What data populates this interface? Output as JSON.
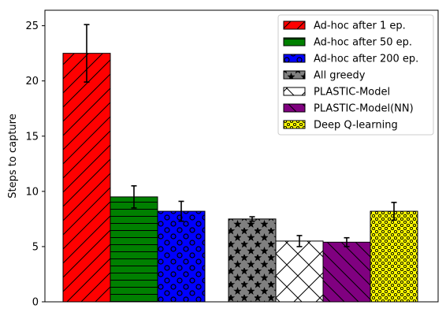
{
  "chart_data": {
    "type": "bar",
    "title": "",
    "xlabel": "",
    "ylabel": "Steps to capture",
    "ylim": [
      0,
      26.4
    ],
    "yticks": [
      0,
      5,
      10,
      15,
      20,
      25
    ],
    "grid": false,
    "legend_position": "top-right",
    "series": [
      {
        "name": "Ad-hoc after 1 ep.",
        "value": 22.5,
        "error": 2.6,
        "color": "#ff0000",
        "hatch": "diag-fwd",
        "group": 0
      },
      {
        "name": "Ad-hoc after 50 ep.",
        "value": 9.5,
        "error": 1.0,
        "color": "#008000",
        "hatch": "horizontal",
        "group": 0
      },
      {
        "name": "Ad-hoc after 200 ep.",
        "value": 8.2,
        "error": 0.9,
        "color": "#0000ff",
        "hatch": "circles",
        "group": 0
      },
      {
        "name": "All greedy",
        "value": 7.5,
        "error": 0.2,
        "color": "#808080",
        "hatch": "stars",
        "group": 1
      },
      {
        "name": "PLASTIC-Model",
        "value": 5.5,
        "error": 0.5,
        "color": "#ffffff",
        "hatch": "cross",
        "group": 1
      },
      {
        "name": "PLASTIC-Model(NN)",
        "value": 5.4,
        "error": 0.4,
        "color": "#800080",
        "hatch": "diag-back",
        "group": 1
      },
      {
        "name": "Deep Q-learning",
        "value": 8.2,
        "error": 0.8,
        "color": "#ffff00",
        "hatch": "dots",
        "group": 1
      }
    ]
  }
}
